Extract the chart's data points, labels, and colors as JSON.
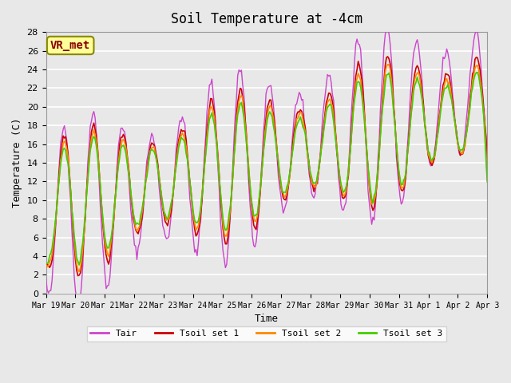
{
  "title": "Soil Temperature at -4cm",
  "xlabel": "Time",
  "ylabel": "Temperature (C)",
  "ylim": [
    0,
    28
  ],
  "yticks": [
    0,
    2,
    4,
    6,
    8,
    10,
    12,
    14,
    16,
    18,
    20,
    22,
    24,
    26,
    28
  ],
  "xtick_labels": [
    "Mar 19",
    "Mar 20",
    "Mar 21",
    "Mar 22",
    "Mar 23",
    "Mar 24",
    "Mar 25",
    "Mar 26",
    "Mar 27",
    "Mar 28",
    "Mar 29",
    "Mar 30",
    "Mar 31",
    "Apr 1",
    "Apr 2",
    "Apr 3"
  ],
  "colors": {
    "Tair": "#cc44cc",
    "Tsoil1": "#cc0000",
    "Tsoil2": "#ff8800",
    "Tsoil3": "#44cc00"
  },
  "legend_labels": [
    "Tair",
    "Tsoil set 1",
    "Tsoil set 2",
    "Tsoil set 3"
  ],
  "annotation_text": "VR_met",
  "annotation_color": "#880000",
  "annotation_bg": "#ffff99",
  "plot_bg": "#e8e8e8",
  "grid_color": "#ffffff",
  "font_family": "monospace"
}
